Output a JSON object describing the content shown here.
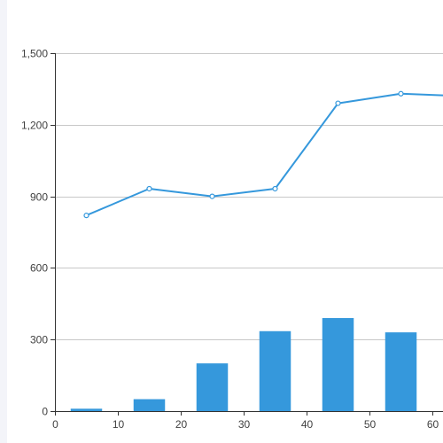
{
  "chart_data": {
    "type": "bar+line",
    "title": "",
    "xlabel": "",
    "ylabel": "",
    "xlim": [
      0,
      60
    ],
    "ylim": [
      0,
      1500
    ],
    "x_ticks": [
      0,
      10,
      20,
      30,
      40,
      50,
      60
    ],
    "y_ticks": [
      0,
      300,
      600,
      900,
      1200,
      1500
    ],
    "x_tick_labels": [
      "0",
      "10",
      "20",
      "30",
      "40",
      "50",
      "60"
    ],
    "y_tick_labels": [
      "0",
      "300",
      "600",
      "900",
      "1,200",
      "1,500"
    ],
    "grid": "horizontal",
    "legend": "none",
    "bar_width": 5,
    "series": [
      {
        "type": "bar",
        "x": [
          5,
          15,
          25,
          35,
          45,
          55
        ],
        "values": [
          10,
          50,
          200,
          335,
          390,
          330
        ],
        "color": "#3598dc"
      },
      {
        "type": "line",
        "x": [
          5,
          15,
          25,
          35,
          45,
          55,
          65
        ],
        "values": [
          820,
          932,
          900,
          932,
          1290,
          1330,
          1320
        ],
        "color": "#3598dc",
        "markers": "hollow-circle"
      }
    ]
  }
}
